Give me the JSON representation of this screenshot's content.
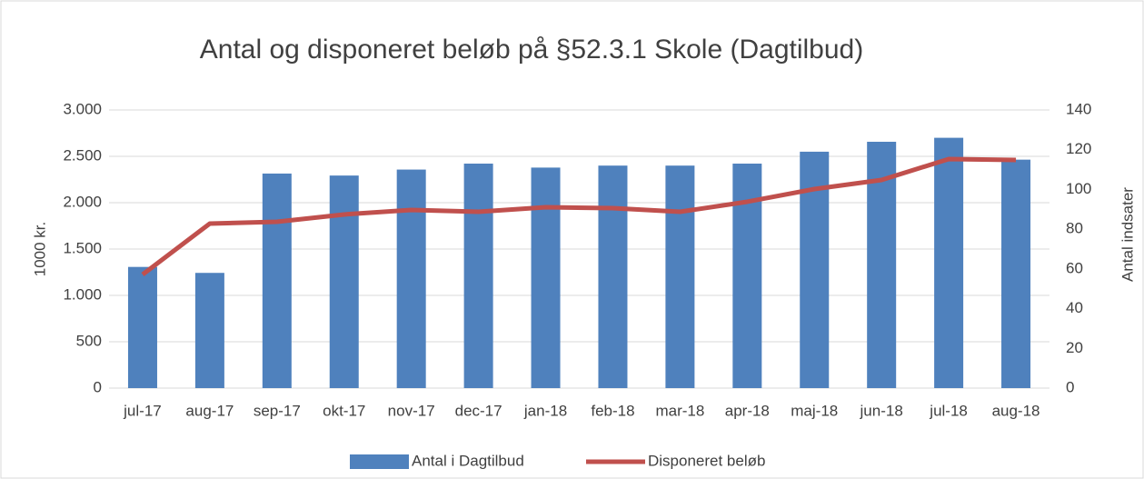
{
  "chart_data": {
    "type": "bar_line",
    "title": "Antal og disponeret beløb på §52.3.1 Skole (Dagtilbud)",
    "y_label": "1000 kr.",
    "y2_label": "Antal indsater",
    "categories": [
      "jul-17",
      "aug-17",
      "sep-17",
      "okt-17",
      "nov-17",
      "dec-17",
      "jan-18",
      "feb-18",
      "mar-18",
      "apr-18",
      "maj-18",
      "jun-18",
      "jul-18",
      "aug-18"
    ],
    "series": [
      {
        "name": "Antal i Dagtilbud",
        "type": "bar",
        "axis": "y2",
        "color": "#4f81bd",
        "values": [
          61,
          58,
          108,
          107,
          110,
          113,
          111,
          112,
          112,
          113,
          119,
          124,
          126,
          115
        ]
      },
      {
        "name": "Disponeret beløb",
        "type": "line",
        "axis": "y",
        "color": "#c0504d",
        "values": [
          1225,
          1775,
          1794,
          1873,
          1922,
          1902,
          1951,
          1941,
          1902,
          2010,
          2147,
          2245,
          2471,
          2461
        ]
      }
    ],
    "ylim": [
      0,
      3000
    ],
    "yticks": [
      0,
      500,
      {
        "value": 1000,
        "label": "1.000"
      },
      {
        "value": 1500,
        "label": "1.500"
      },
      {
        "value": 2000,
        "label": "2.000"
      },
      {
        "value": 2500,
        "label": "2.500"
      },
      {
        "value": 3000,
        "label": "3.000"
      }
    ],
    "y2lim": [
      0,
      140
    ],
    "y2ticks": [
      0,
      20,
      40,
      60,
      80,
      100,
      120,
      140
    ],
    "legend": "bottom"
  }
}
